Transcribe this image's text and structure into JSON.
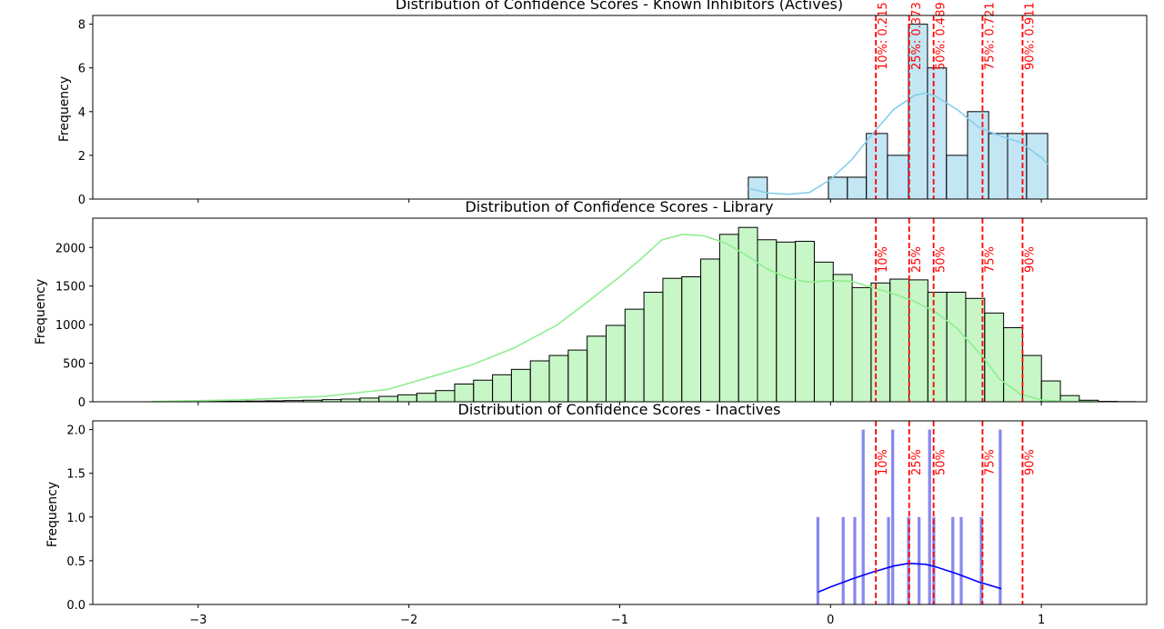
{
  "chart_data": [
    {
      "type": "bar",
      "title": "Distribution of Confidence Scores - Known Inhibitors (Actives)",
      "xlabel": "",
      "ylabel": "Frequency",
      "xlim": [
        -3.5,
        1.5
      ],
      "ylim": [
        0,
        8.4
      ],
      "yticks": [
        0,
        2,
        4,
        6,
        8
      ],
      "ytick_labels": [
        "0",
        "2",
        "4",
        "6",
        "8"
      ],
      "bar_color": "#87ceeb",
      "kde_color": "#87ceeb",
      "bins": [
        {
          "x0": -0.39,
          "x1": -0.3,
          "value": 1
        },
        {
          "x0": -0.01,
          "x1": 0.08,
          "value": 1
        },
        {
          "x0": 0.08,
          "x1": 0.17,
          "value": 1
        },
        {
          "x0": 0.17,
          "x1": 0.27,
          "value": 3
        },
        {
          "x0": 0.27,
          "x1": 0.37,
          "value": 2
        },
        {
          "x0": 0.37,
          "x1": 0.46,
          "value": 8
        },
        {
          "x0": 0.46,
          "x1": 0.55,
          "value": 6
        },
        {
          "x0": 0.55,
          "x1": 0.65,
          "value": 2
        },
        {
          "x0": 0.65,
          "x1": 0.75,
          "value": 4
        },
        {
          "x0": 0.75,
          "x1": 0.84,
          "value": 3
        },
        {
          "x0": 0.84,
          "x1": 0.93,
          "value": 3
        },
        {
          "x0": 0.93,
          "x1": 1.03,
          "value": 3
        }
      ],
      "kde": {
        "x": [
          -0.39,
          -0.3,
          -0.2,
          -0.1,
          0.0,
          0.1,
          0.2,
          0.3,
          0.4,
          0.45,
          0.5,
          0.6,
          0.7,
          0.8,
          0.9,
          1.0,
          1.03
        ],
        "y": [
          0.5,
          0.28,
          0.22,
          0.3,
          0.9,
          1.8,
          3.0,
          4.1,
          4.75,
          4.85,
          4.7,
          4.1,
          3.3,
          2.9,
          2.6,
          1.9,
          1.6
        ]
      },
      "percentiles": [
        {
          "x": 0.215,
          "label": "10%: 0.215"
        },
        {
          "x": 0.373,
          "label": "25%: 0.373"
        },
        {
          "x": 0.489,
          "label": "50%: 0.489"
        },
        {
          "x": 0.721,
          "label": "75%: 0.721"
        },
        {
          "x": 0.911,
          "label": "90%: 0.911"
        }
      ]
    },
    {
      "type": "bar",
      "title": "Distribution of Confidence Scores - Library",
      "xlabel": "",
      "ylabel": "Frequency",
      "xlim": [
        -3.5,
        1.5
      ],
      "ylim": [
        0,
        2380
      ],
      "yticks": [
        0,
        500,
        1000,
        1500,
        2000
      ],
      "ytick_labels": [
        "0",
        "500",
        "1000",
        "1500",
        "2000"
      ],
      "bar_color": "#90ee90",
      "kde_color": "#90ee90",
      "bin_start": -3.22,
      "bin_width": 0.0898,
      "values": [
        2,
        3,
        4,
        5,
        7,
        9,
        12,
        16,
        20,
        28,
        35,
        48,
        70,
        90,
        110,
        145,
        230,
        280,
        350,
        420,
        530,
        600,
        670,
        850,
        990,
        1200,
        1420,
        1600,
        1620,
        1850,
        2170,
        2260,
        2100,
        2070,
        2080,
        1810,
        1650,
        1480,
        1540,
        1590,
        1580,
        1420,
        1420,
        1340,
        1150,
        960,
        600,
        270,
        80,
        20,
        5,
        2
      ],
      "kde": {
        "x": [
          -3.22,
          -2.8,
          -2.4,
          -2.1,
          -1.9,
          -1.7,
          -1.5,
          -1.3,
          -1.15,
          -1.0,
          -0.9,
          -0.8,
          -0.7,
          -0.6,
          -0.5,
          -0.4,
          -0.3,
          -0.2,
          -0.1,
          0.0,
          0.1,
          0.2,
          0.3,
          0.4,
          0.5,
          0.6,
          0.7,
          0.75,
          0.8,
          0.9,
          1.0,
          1.1,
          1.25
        ],
        "y": [
          2,
          25,
          70,
          160,
          320,
          480,
          700,
          990,
          1300,
          1620,
          1850,
          2100,
          2170,
          2150,
          2060,
          1900,
          1720,
          1600,
          1550,
          1570,
          1560,
          1480,
          1400,
          1300,
          1160,
          950,
          650,
          480,
          300,
          100,
          25,
          5,
          0
        ]
      },
      "percentiles": [
        {
          "x": 0.215,
          "label": "10%"
        },
        {
          "x": 0.373,
          "label": "25%"
        },
        {
          "x": 0.489,
          "label": "50%"
        },
        {
          "x": 0.721,
          "label": "75%"
        },
        {
          "x": 0.911,
          "label": "90%"
        }
      ]
    },
    {
      "type": "bar",
      "title": "Distribution of Confidence Scores - Inactives",
      "xlabel": "",
      "ylabel": "Frequency",
      "xlim": [
        -3.5,
        1.5
      ],
      "ylim": [
        0,
        2.1
      ],
      "yticks": [
        0,
        0.5,
        1.0,
        1.5,
        2.0
      ],
      "ytick_labels": [
        "0.0",
        "0.5",
        "1.0",
        "1.5",
        "2.0"
      ],
      "xticks": [
        -3,
        -2,
        -1,
        0,
        1
      ],
      "xtick_labels": [
        "−3",
        "−2",
        "−1",
        "0",
        "1"
      ],
      "bar_color": "#7b7bea",
      "kde_color": "#0000ff",
      "bar_width": 0.014,
      "bins": [
        {
          "x": -0.06,
          "value": 1
        },
        {
          "x": 0.06,
          "value": 1
        },
        {
          "x": 0.115,
          "value": 1
        },
        {
          "x": 0.155,
          "value": 2
        },
        {
          "x": 0.275,
          "value": 1
        },
        {
          "x": 0.295,
          "value": 2
        },
        {
          "x": 0.37,
          "value": 1
        },
        {
          "x": 0.42,
          "value": 1
        },
        {
          "x": 0.47,
          "value": 2
        },
        {
          "x": 0.49,
          "value": 1
        },
        {
          "x": 0.58,
          "value": 1
        },
        {
          "x": 0.62,
          "value": 1
        },
        {
          "x": 0.715,
          "value": 1
        },
        {
          "x": 0.805,
          "value": 2
        }
      ],
      "kde": {
        "x": [
          -0.06,
          0.0,
          0.1,
          0.2,
          0.3,
          0.37,
          0.45,
          0.5,
          0.6,
          0.7,
          0.81
        ],
        "y": [
          0.14,
          0.2,
          0.29,
          0.37,
          0.44,
          0.47,
          0.46,
          0.43,
          0.35,
          0.26,
          0.18
        ]
      },
      "percentiles": [
        {
          "x": 0.215,
          "label": "10%"
        },
        {
          "x": 0.373,
          "label": "25%"
        },
        {
          "x": 0.489,
          "label": "50%"
        },
        {
          "x": 0.721,
          "label": "75%"
        },
        {
          "x": 0.911,
          "label": "90%"
        }
      ]
    }
  ],
  "colors": {
    "percentile_line": "#ff0000",
    "axis": "#000000",
    "bar_edge": "#000000"
  }
}
